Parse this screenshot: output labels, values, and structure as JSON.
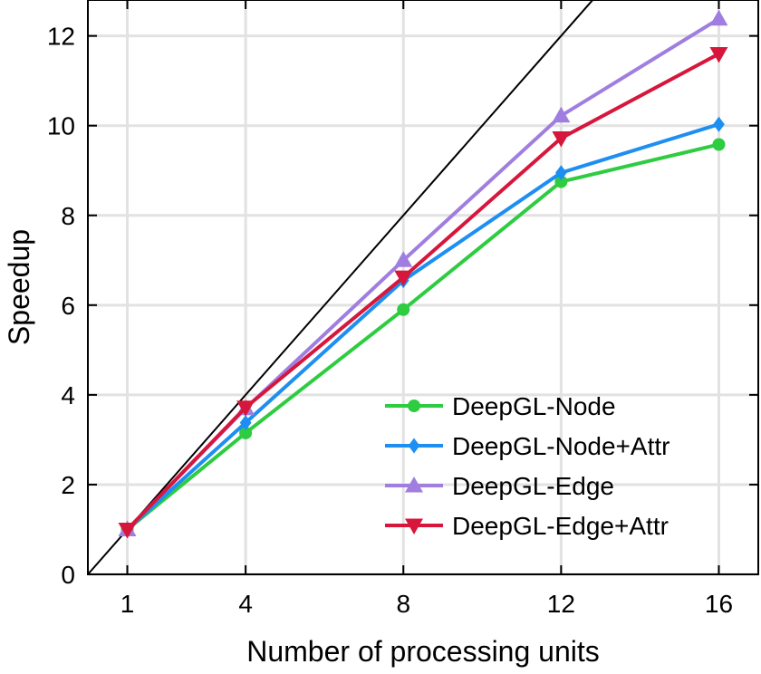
{
  "chart_data": {
    "type": "line",
    "title": "",
    "xlabel": "Number of processing units",
    "ylabel": "Speedup",
    "x": [
      1,
      4,
      8,
      12,
      16
    ],
    "xticks": [
      1,
      4,
      8,
      12,
      16
    ],
    "yticks": [
      0,
      2,
      4,
      6,
      8,
      10,
      12
    ],
    "xlim": [
      0,
      17
    ],
    "ylim": [
      0,
      12.8
    ],
    "grid": true,
    "legend_position": "bottom-right",
    "reference_line": {
      "slope": 1,
      "intercept": 0,
      "color": "#000000"
    },
    "series": [
      {
        "name": "DeepGL-Node",
        "values": [
          1.0,
          3.15,
          5.9,
          8.75,
          9.58
        ],
        "color": "#2ecc40",
        "marker": "circle"
      },
      {
        "name": "DeepGL-Node+Attr",
        "values": [
          1.0,
          3.38,
          6.55,
          8.95,
          10.03
        ],
        "color": "#1e8ff2",
        "marker": "diamond"
      },
      {
        "name": "DeepGL-Edge",
        "values": [
          1.0,
          3.7,
          7.0,
          10.22,
          12.38
        ],
        "color": "#a07ee0",
        "marker": "triangle-up"
      },
      {
        "name": "DeepGL-Edge+Attr",
        "values": [
          1.0,
          3.72,
          6.62,
          9.72,
          11.6
        ],
        "color": "#d7163c",
        "marker": "triangle-down"
      }
    ]
  }
}
